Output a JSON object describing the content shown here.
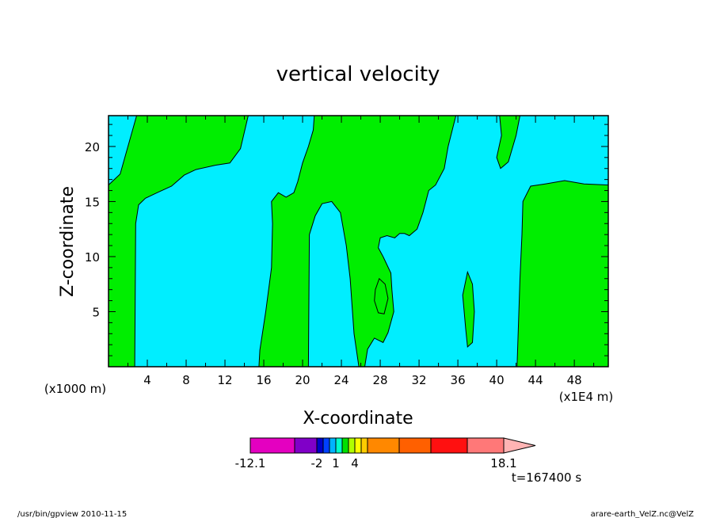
{
  "chart_data": {
    "type": "heatmap",
    "title": "vertical velocity",
    "xlabel": "X-coordinate",
    "ylabel": "Z-coordinate",
    "x_unit_left": "(x1000 m)",
    "x_unit_right": "(x1E4 m)",
    "xlim": [
      0,
      51.5
    ],
    "ylim": [
      0,
      22.8
    ],
    "x_ticks": [
      4,
      8,
      12,
      16,
      20,
      24,
      28,
      32,
      36,
      40,
      44,
      48
    ],
    "y_ticks": [
      5,
      10,
      15,
      20
    ],
    "grid": false,
    "fill_colors": {
      "negative": "#00eeff",
      "positive": "#00ee00"
    },
    "positive_regions": [
      [
        [
          0,
          16.5
        ],
        [
          1.2,
          17.5
        ],
        [
          2.9,
          22.8
        ],
        [
          14.4,
          22.8
        ],
        [
          13.6,
          19.8
        ],
        [
          12.5,
          18.5
        ],
        [
          11,
          18.3
        ],
        [
          9,
          17.9
        ],
        [
          7.8,
          17.4
        ],
        [
          6.5,
          16.4
        ],
        [
          5,
          15.8
        ],
        [
          3.8,
          15.3
        ],
        [
          3.1,
          14.7
        ],
        [
          2.8,
          13
        ],
        [
          2.7,
          0
        ],
        [
          0,
          0
        ]
      ],
      [
        [
          21.2,
          22.8
        ],
        [
          35.8,
          22.8
        ],
        [
          35,
          20
        ],
        [
          34.6,
          18
        ],
        [
          33.7,
          16.5
        ],
        [
          33,
          16
        ],
        [
          32.4,
          14
        ],
        [
          31.8,
          12.5
        ],
        [
          31,
          11.9
        ],
        [
          30.5,
          12.1
        ],
        [
          30,
          12.1
        ],
        [
          29.5,
          11.7
        ],
        [
          28.7,
          11.9
        ],
        [
          28,
          11.7
        ],
        [
          27.8,
          10.8
        ],
        [
          28.3,
          10
        ],
        [
          29.1,
          8.5
        ],
        [
          29.2,
          7
        ],
        [
          29.4,
          5
        ],
        [
          28.8,
          3.1
        ],
        [
          28.3,
          2.2
        ],
        [
          27.4,
          2.6
        ],
        [
          26.7,
          1.6
        ],
        [
          26.4,
          0
        ],
        [
          25.8,
          0
        ],
        [
          25.3,
          3
        ],
        [
          24.9,
          8
        ],
        [
          24.5,
          11
        ],
        [
          23.9,
          14
        ],
        [
          23,
          15
        ],
        [
          22,
          14.8
        ],
        [
          21.3,
          13.7
        ],
        [
          20.7,
          12
        ],
        [
          20.6,
          0
        ],
        [
          15.5,
          0
        ],
        [
          15.6,
          1.5
        ],
        [
          16.2,
          5
        ],
        [
          16.8,
          9
        ],
        [
          16.9,
          13
        ],
        [
          16.8,
          15
        ],
        [
          17.5,
          15.8
        ],
        [
          18.3,
          15.4
        ],
        [
          19.1,
          15.8
        ],
        [
          19.5,
          16.8
        ],
        [
          20,
          18.5
        ],
        [
          20.6,
          20
        ],
        [
          21.1,
          21.5
        ]
      ],
      [
        [
          27.5,
          7
        ],
        [
          27.9,
          8
        ],
        [
          28.5,
          7.5
        ],
        [
          28.8,
          6.2
        ],
        [
          28.4,
          4.8
        ],
        [
          27.8,
          4.9
        ],
        [
          27.4,
          6
        ]
      ],
      [
        [
          36.5,
          6.5
        ],
        [
          37,
          8.6
        ],
        [
          37.5,
          7.5
        ],
        [
          37.7,
          5
        ],
        [
          37.5,
          2.2
        ],
        [
          37,
          1.8
        ],
        [
          36.8,
          3.5
        ]
      ],
      [
        [
          40.3,
          22.8
        ],
        [
          42.4,
          22.8
        ],
        [
          42,
          21
        ],
        [
          41.2,
          18.6
        ],
        [
          40.4,
          18
        ],
        [
          40,
          19
        ],
        [
          40.5,
          21
        ]
      ],
      [
        [
          42.1,
          0
        ],
        [
          42.4,
          8
        ],
        [
          42.6,
          12
        ],
        [
          42.7,
          15
        ],
        [
          43.5,
          16.4
        ],
        [
          45,
          16.6
        ],
        [
          47,
          16.9
        ],
        [
          49,
          16.6
        ],
        [
          51.5,
          16.5
        ],
        [
          51.5,
          0
        ]
      ]
    ],
    "colorbar": {
      "colors": [
        "#e400c0",
        "#8000c8",
        "#0000c8",
        "#0040ff",
        "#00b4ff",
        "#00ffcc",
        "#00e000",
        "#b0ff00",
        "#ffff00",
        "#ffcc00",
        "#ff8800",
        "#ff6000",
        "#ff1010",
        "#ff7878",
        "#ffb4b4"
      ],
      "widths": [
        56,
        28,
        8,
        8,
        8,
        8,
        8,
        8,
        8,
        8,
        40,
        40,
        46,
        46,
        40
      ],
      "labels": [
        "-12.1",
        "-2",
        "1",
        "4",
        "18.1"
      ],
      "label_segment_edges": [
        0,
        2,
        5,
        8,
        14
      ]
    },
    "time_label": "t=167400 s"
  },
  "footer": {
    "left": "/usr/bin/gpview  2010-11-15",
    "right": "arare-earth_VelZ.nc@VelZ"
  }
}
